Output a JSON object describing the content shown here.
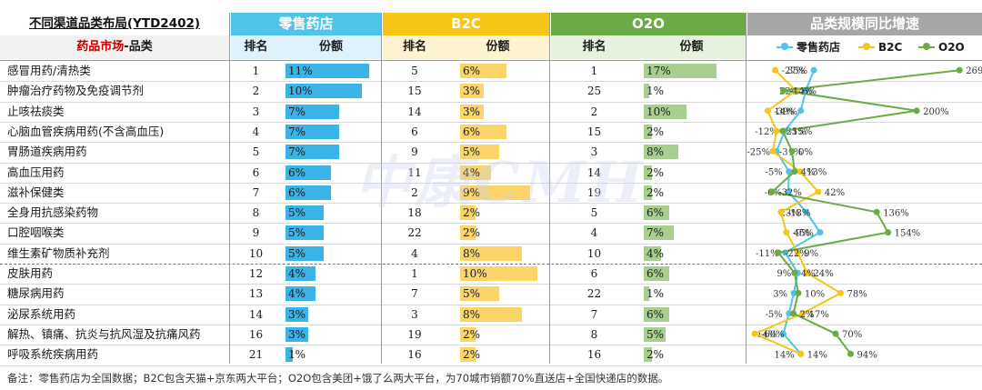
{
  "header": {
    "title": "不同渠道品类布局(YTD2402)",
    "market_label": "药品市场",
    "category_label": "-品类",
    "channels": [
      "零售药店",
      "B2C",
      "O2O"
    ],
    "growth_title": "品类规模同比增速",
    "col_rank": "排名",
    "col_share": "份额"
  },
  "legend": [
    "零售药店",
    "B2C",
    "O2O"
  ],
  "colors": {
    "retail": "#4fc3e8",
    "b2c": "#f5c518",
    "o2o": "#6aab45",
    "growth_header": "#a6a6a6",
    "retail_bar": "#3ab4e6",
    "b2c_bar": "#fbd46a",
    "o2o_bar": "#a8cf8f"
  },
  "watermark": "中康CMH",
  "footnote": "备注：零售药店为全国数据；B2C包含天猫+京东两大平台；O2O包含美团+饿了么两大平台，为70城市销额70%直送店+全国快递店的数据。",
  "rows": [
    {
      "name": "感冒用药/清热类",
      "retail_rank": "1",
      "retail_share": "11%",
      "b2c_rank": "5",
      "b2c_share": "6%",
      "o2o_rank": "1",
      "o2o_share": "17%"
    },
    {
      "name": "肿瘤治疗药物及免疫调节剂",
      "retail_rank": "2",
      "retail_share": "10%",
      "b2c_rank": "15",
      "b2c_share": "3%",
      "o2o_rank": "25",
      "o2o_share": "1%"
    },
    {
      "name": "止咳祛痰类",
      "retail_rank": "3",
      "retail_share": "7%",
      "b2c_rank": "14",
      "b2c_share": "3%",
      "o2o_rank": "2",
      "o2o_share": "10%"
    },
    {
      "name": "心脑血管疾病用药(不含高血压)",
      "retail_rank": "4",
      "retail_share": "7%",
      "b2c_rank": "6",
      "b2c_share": "6%",
      "o2o_rank": "15",
      "o2o_share": "2%"
    },
    {
      "name": "胃肠道疾病用药",
      "retail_rank": "5",
      "retail_share": "7%",
      "b2c_rank": "9",
      "b2c_share": "5%",
      "o2o_rank": "3",
      "o2o_share": "8%"
    },
    {
      "name": "高血压用药",
      "retail_rank": "6",
      "retail_share": "6%",
      "b2c_rank": "11",
      "b2c_share": "4%",
      "o2o_rank": "14",
      "o2o_share": "2%"
    },
    {
      "name": "滋补保健类",
      "retail_rank": "7",
      "retail_share": "6%",
      "b2c_rank": "2",
      "b2c_share": "9%",
      "o2o_rank": "19",
      "o2o_share": "2%"
    },
    {
      "name": "全身用抗感染药物",
      "retail_rank": "8",
      "retail_share": "5%",
      "b2c_rank": "18",
      "b2c_share": "2%",
      "o2o_rank": "5",
      "o2o_share": "6%"
    },
    {
      "name": "口腔咽喉类",
      "retail_rank": "9",
      "retail_share": "5%",
      "b2c_rank": "22",
      "b2c_share": "2%",
      "o2o_rank": "4",
      "o2o_share": "7%"
    },
    {
      "name": "维生素矿物质补充剂",
      "retail_rank": "10",
      "retail_share": "5%",
      "b2c_rank": "4",
      "b2c_share": "8%",
      "o2o_rank": "10",
      "o2o_share": "4%"
    },
    {
      "name": "皮肤用药",
      "retail_rank": "12",
      "retail_share": "4%",
      "b2c_rank": "1",
      "b2c_share": "10%",
      "o2o_rank": "6",
      "o2o_share": "6%"
    },
    {
      "name": "糖尿病用药",
      "retail_rank": "13",
      "retail_share": "4%",
      "b2c_rank": "7",
      "b2c_share": "5%",
      "o2o_rank": "22",
      "o2o_share": "1%"
    },
    {
      "name": "泌尿系统用药",
      "retail_rank": "14",
      "retail_share": "3%",
      "b2c_rank": "3",
      "b2c_share": "8%",
      "o2o_rank": "7",
      "o2o_share": "6%"
    },
    {
      "name": "解热、镇痛、抗炎与抗风湿及抗痛风药",
      "retail_rank": "16",
      "retail_share": "3%",
      "b2c_rank": "19",
      "b2c_share": "2%",
      "o2o_rank": "8",
      "o2o_share": "5%"
    },
    {
      "name": "呼吸系统疾病用药",
      "retail_rank": "21",
      "retail_share": "1%",
      "b2c_rank": "16",
      "b2c_share": "2%",
      "o2o_rank": "16",
      "o2o_share": "2%"
    }
  ],
  "chart_data": {
    "type": "line",
    "title": "品类规模同比增速",
    "orientation": "vertical-categories",
    "categories": [
      "感冒用药/清热类",
      "肿瘤治疗药物及免疫调节剂",
      "止咳祛痰类",
      "心脑血管疾病用药(不含高血压)",
      "胃肠道疾病用药",
      "高血压用药",
      "滋补保健类",
      "全身用抗感染药物",
      "口腔咽喉类",
      "维生素矿物质补充剂",
      "皮肤用药",
      "糖尿病用药",
      "泌尿系统用药",
      "解热、镇痛、抗炎与抗风湿及抗痛风药",
      "呼吸系统疾病用药"
    ],
    "series": [
      {
        "name": "零售药店",
        "values": [
          35,
          22,
          14,
          -12,
          -25,
          -5,
          -6,
          23,
          45,
          -11,
          9,
          3,
          -5,
          -14,
          14
        ],
        "labels": [
          "35%",
          "22%",
          "14%",
          "-12%",
          "-25%",
          "-5%",
          "-6%",
          "23%",
          "45%",
          "-11%",
          "9%",
          "3%",
          "-5%",
          "-14%",
          "14%"
        ]
      },
      {
        "name": "B2C",
        "values": [
          -27,
          6,
          -39,
          -25,
          -31,
          13,
          42,
          -18,
          -9,
          9,
          24,
          78,
          17,
          -60,
          14
        ],
        "labels": [
          "-27%",
          "6%",
          "-39%",
          "-25%",
          "-31%",
          "13%",
          "42%",
          "-18%",
          "-9%",
          "9%",
          "24%",
          "78%",
          "17%",
          "-60%",
          "14%"
        ]
      },
      {
        "name": "O2O",
        "values": [
          269,
          -14,
          200,
          -15,
          0,
          4,
          -32,
          136,
          154,
          -22,
          4,
          10,
          2,
          70,
          94
        ],
        "labels": [
          "269%",
          "-14%",
          "200%",
          "-15%",
          "0%",
          "4%",
          "-32%",
          "136%",
          "154%",
          "-22%",
          "4%",
          "10%",
          "2%",
          "70%",
          "94%"
        ]
      }
    ],
    "legend_position": "top"
  }
}
